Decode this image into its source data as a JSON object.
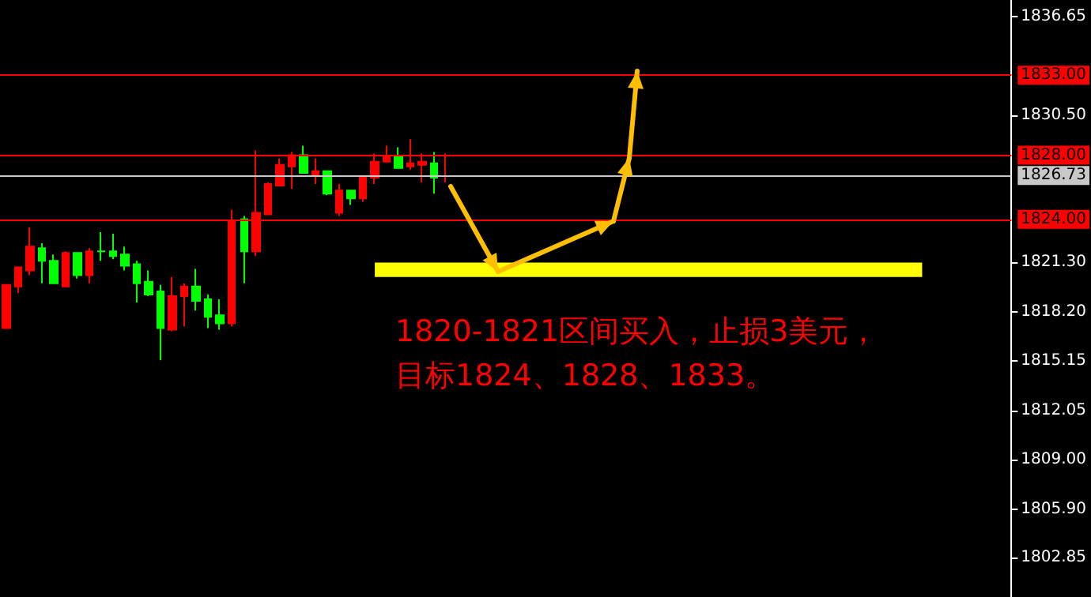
{
  "chart_data": {
    "type": "candlestick",
    "categories": [
      null,
      null,
      null,
      null,
      null,
      null,
      null,
      null,
      null,
      null,
      null,
      null,
      null,
      null,
      null,
      null,
      null,
      null,
      null,
      null,
      null,
      null,
      null,
      null,
      null,
      null,
      null,
      null,
      null,
      null,
      null,
      null,
      null,
      null,
      null,
      null,
      null,
      null,
      null,
      null,
      null,
      null,
      null,
      null,
      null,
      null,
      null,
      null,
      null,
      null,
      null,
      null,
      null,
      null,
      null,
      null,
      null,
      null,
      null,
      null,
      null,
      null,
      null,
      null,
      null,
      null,
      null,
      null,
      null,
      null,
      null,
      null,
      null,
      null,
      null,
      null,
      null,
      null,
      null,
      null,
      null,
      null,
      null,
      null,
      null
    ],
    "ohlc": [
      [
        1817.2,
        1819.9,
        1817.2,
        1819.9
      ],
      [
        1819.8,
        1821.0,
        1819.4,
        1821.0
      ],
      [
        1820.8,
        1823.5,
        1820.5,
        1822.3
      ],
      [
        1822.2,
        1822.5,
        1820.0,
        1821.4
      ],
      [
        1821.4,
        1821.8,
        1820.0,
        1820.0
      ],
      [
        1819.8,
        1822.0,
        1819.8,
        1821.9
      ],
      [
        1821.9,
        1821.9,
        1820.3,
        1820.5
      ],
      [
        1820.5,
        1822.2,
        1820.0,
        1822.0
      ],
      [
        1822.0,
        1823.2,
        1821.4,
        1822.0
      ],
      [
        1822.0,
        1823.1,
        1821.5,
        1821.7
      ],
      [
        1821.8,
        1822.3,
        1820.8,
        1821.1
      ],
      [
        1821.2,
        1821.4,
        1818.8,
        1820.0
      ],
      [
        1820.1,
        1820.8,
        1819.2,
        1819.3
      ],
      [
        1819.5,
        1819.9,
        1815.2,
        1817.2
      ],
      [
        1817.1,
        1820.4,
        1817.0,
        1819.2
      ],
      [
        1819.2,
        1820.0,
        1817.3,
        1819.8
      ],
      [
        1819.8,
        1820.9,
        1818.3,
        1818.9
      ],
      [
        1819.0,
        1819.3,
        1817.2,
        1817.9
      ],
      [
        1818.0,
        1819.0,
        1817.1,
        1817.5
      ],
      [
        1817.5,
        1824.6,
        1817.3,
        1823.9
      ],
      [
        1824.0,
        1824.2,
        1820.0,
        1822.0
      ],
      [
        1822.0,
        1828.3,
        1821.7,
        1824.4
      ],
      [
        1824.3,
        1826.3,
        1824.3,
        1826.2
      ],
      [
        1826.1,
        1827.8,
        1826.1,
        1827.4
      ],
      [
        1827.3,
        1828.2,
        1825.9,
        1828.0
      ],
      [
        1828.0,
        1828.6,
        1826.9,
        1826.9
      ],
      [
        1826.8,
        1827.8,
        1826.2,
        1827.0
      ],
      [
        1827.0,
        1827.0,
        1825.5,
        1825.6
      ],
      [
        1824.4,
        1826.2,
        1824.2,
        1825.8
      ],
      [
        1825.8,
        1825.8,
        1824.9,
        1825.3
      ],
      [
        1825.3,
        1826.7,
        1825.1,
        1826.7
      ],
      [
        1826.6,
        1828.1,
        1826.2,
        1827.6
      ],
      [
        1827.6,
        1828.6,
        1827.6,
        1827.9
      ],
      [
        1827.9,
        1828.5,
        1827.2,
        1827.2
      ],
      [
        1827.3,
        1829.0,
        1827.1,
        1827.5
      ],
      [
        1827.4,
        1828.1,
        1826.3,
        1827.6
      ],
      [
        1827.5,
        1828.2,
        1825.6,
        1826.6
      ],
      [
        1826.7,
        1828.1,
        1826.3,
        1826.7
      ],
      null,
      null,
      null,
      null,
      null,
      null,
      null,
      null,
      null,
      null,
      null,
      null,
      null,
      null,
      null,
      null,
      null,
      null,
      null,
      null,
      null,
      null,
      null,
      null,
      null,
      null,
      null,
      null,
      null,
      null,
      null,
      null,
      null,
      null,
      null,
      null,
      null,
      null,
      null,
      null,
      null,
      null,
      null,
      null,
      null,
      null,
      null
    ],
    "colors": [
      "#ff0000",
      "#ff0000",
      "#ff0000",
      "#00ff00",
      "#00ff00",
      "#ff0000",
      "#00ff00",
      "#ff0000",
      "#00ff00",
      "#00ff00",
      "#00ff00",
      "#00ff00",
      "#00ff00",
      "#00ff00",
      "#ff0000",
      "#ff0000",
      "#00ff00",
      "#00ff00",
      "#00ff00",
      "#ff0000",
      "#00ff00",
      "#ff0000",
      "#ff0000",
      "#ff0000",
      "#ff0000",
      "#00ff00",
      "#ff0000",
      "#00ff00",
      "#ff0000",
      "#00ff00",
      "#ff0000",
      "#ff0000",
      "#ff0000",
      "#00ff00",
      "#ff0000",
      "#ff0000",
      "#00ff00",
      "#ff0000",
      null,
      null,
      null,
      null,
      null,
      null,
      null,
      null,
      null,
      null,
      null,
      null,
      null,
      null,
      null,
      null,
      null,
      null,
      null,
      null,
      null,
      null,
      null,
      null,
      null,
      null,
      null,
      null,
      null,
      null,
      null,
      null,
      null,
      null,
      null,
      null,
      null,
      null,
      null,
      null,
      null,
      null,
      null,
      null,
      null,
      null,
      null
    ],
    "ylim": [
      1800.4,
      1837.7
    ],
    "yticks": [
      1836.65,
      {
        "value": 1830.5,
        "label": "1830.50"
      },
      {
        "value": 1821.3,
        "label": "1821.30"
      },
      {
        "value": 1818.2,
        "label": "1818.20"
      },
      1815.15,
      1812.05,
      {
        "value": 1809,
        "label": "1809.00"
      },
      {
        "value": 1805.9,
        "label": "1805.90"
      },
      1802.85
    ],
    "ref_lines": [
      {
        "axis": "y",
        "value": 1833,
        "label": "1833.00",
        "color": "#ff0000"
      },
      {
        "axis": "y",
        "value": 1828,
        "label": "1828.00",
        "color": "#ff0000"
      },
      {
        "axis": "y",
        "value": 1826.73,
        "label": "1826.73",
        "color": "#c8c8c8"
      },
      {
        "axis": "y",
        "value": 1824,
        "label": "1824.00",
        "color": "#ff0000"
      }
    ],
    "bands": [
      {
        "axis": "y",
        "from": 1820.4,
        "to": 1821.3,
        "color": "#ffff00"
      }
    ],
    "annotations": [
      "1820-1821区间买入，止损3美元，",
      "目标1824、1828、1833。"
    ],
    "grid": false,
    "tick_labels": "y"
  }
}
